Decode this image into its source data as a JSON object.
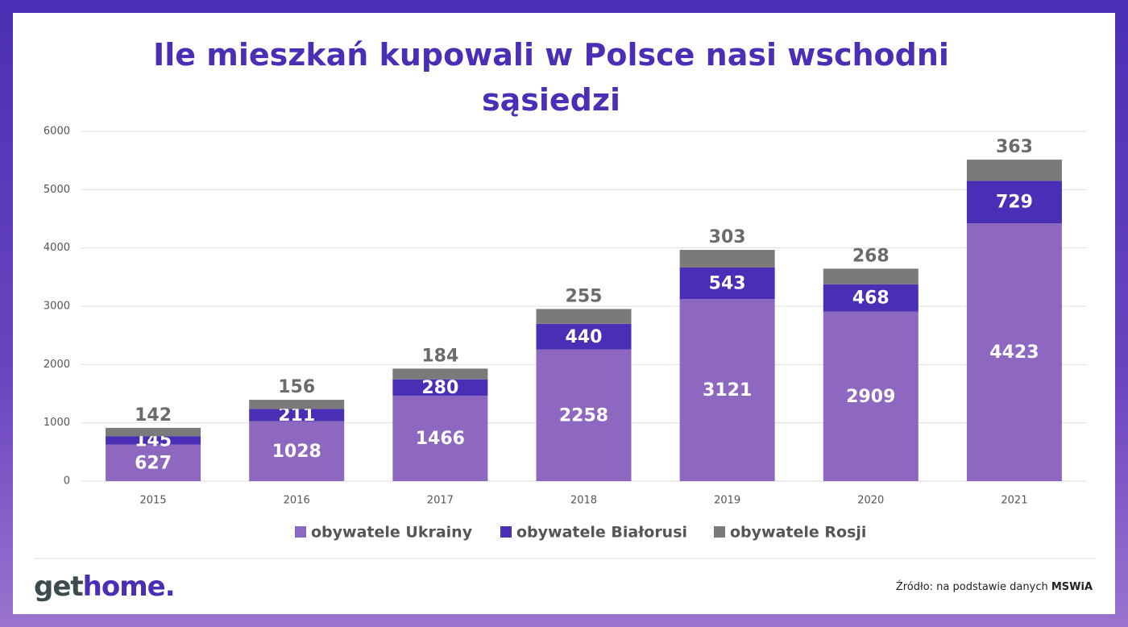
{
  "chart_data": {
    "type": "stacked_bar",
    "title": "Ile mieszkań kupowali w Polsce nasi wschodni sąsiedzi",
    "categories": [
      "2015",
      "2016",
      "2017",
      "2018",
      "2019",
      "2020",
      "2021"
    ],
    "series": [
      {
        "name": "obywatele Ukrainy",
        "color": "#8e68c0",
        "values": [
          627,
          1028,
          1466,
          2258,
          3121,
          2909,
          4423
        ]
      },
      {
        "name": "obywatele Białorusi",
        "color": "#4a2fb6",
        "values": [
          145,
          211,
          280,
          440,
          543,
          468,
          729
        ]
      },
      {
        "name": "obywatele Rosji",
        "color": "#7a7a7a",
        "values": [
          142,
          156,
          184,
          255,
          303,
          268,
          363
        ]
      }
    ],
    "ylim": [
      0,
      6000
    ],
    "yticks": [
      0,
      1000,
      2000,
      3000,
      4000,
      5000,
      6000
    ],
    "grid": true,
    "legend": "bottom"
  },
  "footer": {
    "logo_dark": "get",
    "logo_accent": "home.",
    "source": "Źródło: na podstawie danych",
    "source_bold": "MSWiA"
  }
}
